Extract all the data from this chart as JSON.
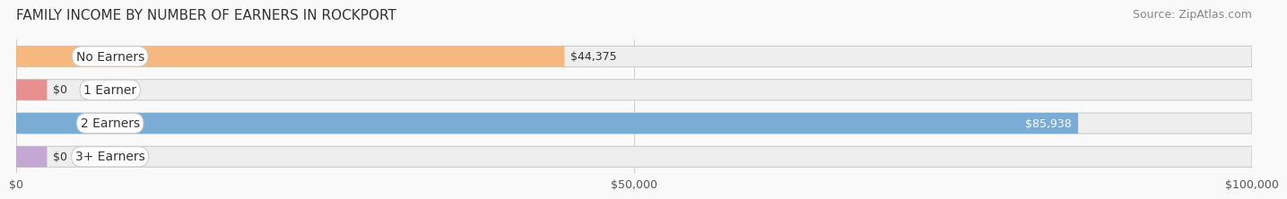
{
  "title": "FAMILY INCOME BY NUMBER OF EARNERS IN ROCKPORT",
  "source": "Source: ZipAtlas.com",
  "categories": [
    "No Earners",
    "1 Earner",
    "2 Earners",
    "3+ Earners"
  ],
  "values": [
    44375,
    0,
    85938,
    0
  ],
  "bar_colors": [
    "#f5b97f",
    "#e89090",
    "#7aacd6",
    "#c4a8d4"
  ],
  "bar_bg_color": "#eeeeee",
  "bar_bg_outer_color": "#e0e0e0",
  "label_bg_color": "#ffffff",
  "xlim": [
    0,
    100000
  ],
  "xticks": [
    0,
    50000,
    100000
  ],
  "xtick_labels": [
    "$0",
    "$50,000",
    "$100,000"
  ],
  "title_fontsize": 11,
  "source_fontsize": 9,
  "label_fontsize": 10,
  "value_fontsize": 9,
  "figure_bg_color": "#f9f9f9"
}
